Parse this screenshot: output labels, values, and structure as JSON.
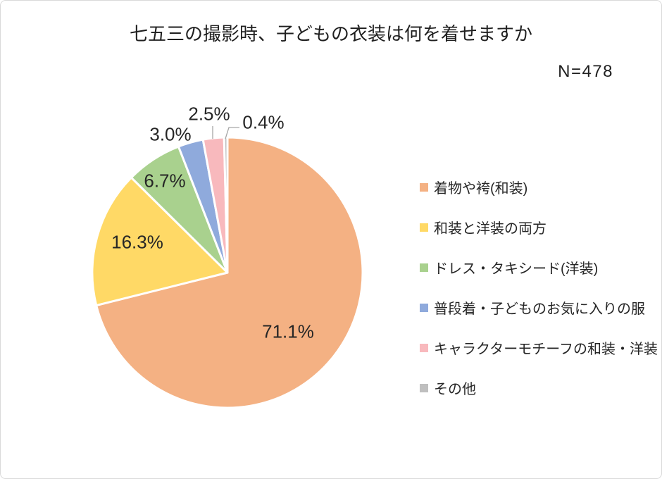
{
  "title": "七五三の撮影時、子どもの衣装は何を着せますか",
  "meta": {
    "n_label": "N=478"
  },
  "chart_data": {
    "type": "pie",
    "title": "七五三の撮影時、子どもの衣装は何を着せますか",
    "sample_size": 478,
    "start_angle": "top",
    "direction": "clockwise",
    "legend_position": "right",
    "categories": [
      "着物や袴(和装)",
      "和装と洋装の両方",
      "ドレス・タキシード(洋装)",
      "普段着・子どものお気に入りの服",
      "キャラクターモチーフの和装・洋装",
      "その他"
    ],
    "values": [
      71.1,
      16.3,
      6.7,
      3.0,
      2.5,
      0.4
    ],
    "display_labels": [
      "71.1%",
      "16.3%",
      "6.7%",
      "3.0%",
      "2.5%",
      "0.4%"
    ],
    "colors": [
      "#F4B183",
      "#FFD966",
      "#A9D18E",
      "#8FAADC",
      "#F8B9BD",
      "#BFBFBF"
    ],
    "slice_border_color": "#FFFFFF",
    "leader_line_color": "#A6A6A6",
    "label_color": "#262626"
  }
}
